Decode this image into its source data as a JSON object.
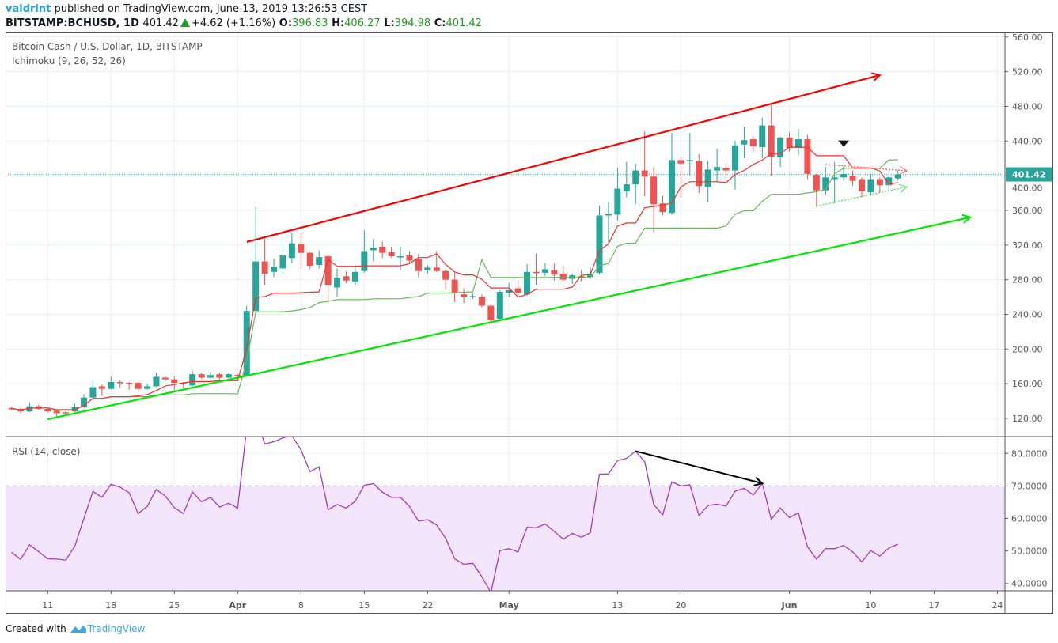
{
  "header": {
    "author": "valdrint",
    "published": "published on TradingView.com, June 13, 2019 13:26:53 CEST",
    "symbol": "BITSTAMP:BCHUSD, 1D",
    "last": "401.42",
    "change": "+4.62 (+1.16%)",
    "o_label": "O:",
    "o": "396.83",
    "h_label": "H:",
    "h": "406.27",
    "l_label": "L:",
    "l": "394.98",
    "c_label": "C:",
    "c": "401.42"
  },
  "legend": {
    "title": "Bitcoin Cash / U.S. Dollar, 1D, BITSTAMP",
    "indicator": "Ichimoku (9, 26, 52, 26)",
    "rsi": "RSI (14, close)"
  },
  "footer": {
    "created_with": "Created with",
    "brand": "TradingView"
  },
  "colors": {
    "up": "#26a69a",
    "down": "#ef5350",
    "tenkan": "#ff2b2b",
    "kijun": "#66b85a",
    "rsi": "#a33cc0",
    "rsi_band": "#f3e5fc",
    "last_price": "#26a69a",
    "resistance": "#ff0000",
    "support": "#00e600",
    "arrow": "#000000"
  },
  "chart_data": [
    {
      "type": "candlestick",
      "title": "Bitcoin Cash / U.S. Dollar, 1D, BITSTAMP",
      "ylim": [
        110,
        565
      ],
      "y_ticks": [
        "560.00",
        "520.00",
        "480.00",
        "440.00",
        "400.00",
        "360.00",
        "320.00",
        "280.00",
        "240.00",
        "200.00",
        "160.00",
        "120.00"
      ],
      "y_tick_values": [
        560,
        520,
        480,
        440,
        400,
        360,
        320,
        280,
        240,
        200,
        160,
        120
      ],
      "x_ticks": [
        {
          "date": "2019-03-11",
          "label": "11"
        },
        {
          "date": "2019-03-18",
          "label": "18"
        },
        {
          "date": "2019-03-25",
          "label": "25"
        },
        {
          "date": "2019-04-01",
          "label": "Apr"
        },
        {
          "date": "2019-04-08",
          "label": "8"
        },
        {
          "date": "2019-04-15",
          "label": "15"
        },
        {
          "date": "2019-04-22",
          "label": "22"
        },
        {
          "date": "2019-05-01",
          "label": "May"
        },
        {
          "date": "2019-05-13",
          "label": "13"
        },
        {
          "date": "2019-05-20",
          "label": "20"
        },
        {
          "date": "2019-06-01",
          "label": "Jun"
        },
        {
          "date": "2019-06-10",
          "label": "10"
        },
        {
          "date": "2019-06-17",
          "label": "17"
        },
        {
          "date": "2019-06-24",
          "label": "24"
        }
      ],
      "x_range": [
        "2019-03-06",
        "2019-06-29"
      ],
      "grid": true,
      "last_price": 401.42,
      "last_price_label": "401.42",
      "columns": [
        "date",
        "open",
        "high",
        "low",
        "close"
      ],
      "candles": [
        [
          "2019-03-07",
          132,
          133,
          130,
          131
        ],
        [
          "2019-03-08",
          131,
          132,
          126,
          128
        ],
        [
          "2019-03-09",
          128,
          138,
          127,
          134
        ],
        [
          "2019-03-10",
          134,
          136,
          130,
          131
        ],
        [
          "2019-03-11",
          131,
          132,
          127,
          128
        ],
        [
          "2019-03-12",
          129,
          130,
          122,
          126
        ],
        [
          "2019-03-13",
          127,
          128,
          124,
          126
        ],
        [
          "2019-03-14",
          128,
          137,
          127,
          133
        ],
        [
          "2019-03-15",
          133,
          148,
          132,
          144
        ],
        [
          "2019-03-16",
          144,
          164,
          143,
          156
        ],
        [
          "2019-03-17",
          157,
          159,
          146,
          154
        ],
        [
          "2019-03-18",
          154,
          168,
          153,
          162
        ],
        [
          "2019-03-19",
          162,
          164,
          155,
          161
        ],
        [
          "2019-03-20",
          161,
          162,
          153,
          160
        ],
        [
          "2019-03-21",
          161,
          162,
          150,
          154
        ],
        [
          "2019-03-22",
          154,
          160,
          153,
          157
        ],
        [
          "2019-03-23",
          157,
          172,
          156,
          168
        ],
        [
          "2019-03-24",
          167,
          169,
          163,
          165
        ],
        [
          "2019-03-25",
          165,
          168,
          152,
          161
        ],
        [
          "2019-03-26",
          161,
          162,
          155,
          160
        ],
        [
          "2019-03-27",
          158,
          175,
          157,
          171
        ],
        [
          "2019-03-28",
          171,
          172,
          166,
          167
        ],
        [
          "2019-03-29",
          167,
          173,
          166,
          170
        ],
        [
          "2019-03-30",
          171,
          172,
          165,
          167
        ],
        [
          "2019-03-31",
          167,
          172,
          166,
          171
        ],
        [
          "2019-04-01",
          170,
          171,
          167,
          169
        ],
        [
          "2019-04-02",
          169,
          250,
          168,
          244
        ],
        [
          "2019-04-03",
          244,
          364,
          242,
          301
        ],
        [
          "2019-04-04",
          301,
          327,
          274,
          287
        ],
        [
          "2019-04-05",
          289,
          304,
          283,
          295
        ],
        [
          "2019-04-06",
          293,
          336,
          286,
          308
        ],
        [
          "2019-04-07",
          305,
          334,
          299,
          322
        ],
        [
          "2019-04-08",
          321,
          334,
          292,
          311
        ],
        [
          "2019-04-09",
          311,
          312,
          292,
          296
        ],
        [
          "2019-04-10",
          297,
          314,
          293,
          306
        ],
        [
          "2019-04-11",
          307,
          308,
          255,
          274
        ],
        [
          "2019-04-12",
          271,
          293,
          260,
          282
        ],
        [
          "2019-04-13",
          284,
          290,
          276,
          279
        ],
        [
          "2019-04-14",
          278,
          297,
          274,
          289
        ],
        [
          "2019-04-15",
          290,
          337,
          288,
          313
        ],
        [
          "2019-04-16",
          314,
          327,
          301,
          317
        ],
        [
          "2019-04-17",
          318,
          324,
          305,
          311
        ],
        [
          "2019-04-18",
          312,
          318,
          305,
          307
        ],
        [
          "2019-04-19",
          306,
          318,
          291,
          307
        ],
        [
          "2019-04-20",
          308,
          313,
          299,
          302
        ],
        [
          "2019-04-21",
          304,
          310,
          283,
          290
        ],
        [
          "2019-04-22",
          291,
          297,
          287,
          294
        ],
        [
          "2019-04-23",
          294,
          313,
          289,
          290
        ],
        [
          "2019-04-24",
          290,
          292,
          268,
          280
        ],
        [
          "2019-04-25",
          280,
          288,
          254,
          264
        ],
        [
          "2019-04-26",
          263,
          270,
          253,
          260
        ],
        [
          "2019-04-27",
          260,
          264,
          258,
          261
        ],
        [
          "2019-04-28",
          260,
          263,
          248,
          250
        ],
        [
          "2019-04-29",
          250,
          252,
          228,
          233
        ],
        [
          "2019-04-30",
          235,
          268,
          233,
          266
        ],
        [
          "2019-05-01",
          265,
          276,
          260,
          268
        ],
        [
          "2019-05-02",
          270,
          279,
          262,
          265
        ],
        [
          "2019-05-03",
          263,
          298,
          262,
          289
        ],
        [
          "2019-05-04",
          289,
          310,
          274,
          288
        ],
        [
          "2019-05-05",
          288,
          299,
          284,
          292
        ],
        [
          "2019-05-06",
          291,
          299,
          279,
          286
        ],
        [
          "2019-05-07",
          287,
          296,
          278,
          280
        ],
        [
          "2019-05-08",
          281,
          287,
          275,
          285
        ],
        [
          "2019-05-09",
          284,
          291,
          278,
          282
        ],
        [
          "2019-05-10",
          283,
          294,
          281,
          287
        ],
        [
          "2019-05-11",
          288,
          365,
          286,
          354
        ],
        [
          "2019-05-12",
          354,
          369,
          323,
          356
        ],
        [
          "2019-05-13",
          355,
          409,
          348,
          385
        ],
        [
          "2019-05-14",
          382,
          416,
          375,
          390
        ],
        [
          "2019-05-15",
          390,
          414,
          367,
          406
        ],
        [
          "2019-05-16",
          406,
          451,
          376,
          399
        ],
        [
          "2019-05-17",
          399,
          410,
          335,
          367
        ],
        [
          "2019-05-18",
          368,
          377,
          354,
          358
        ],
        [
          "2019-05-19",
          357,
          449,
          355,
          418
        ],
        [
          "2019-05-20",
          418,
          421,
          375,
          414
        ],
        [
          "2019-05-21",
          417,
          449,
          400,
          418
        ],
        [
          "2019-05-22",
          417,
          425,
          380,
          388
        ],
        [
          "2019-05-23",
          387,
          417,
          369,
          407
        ],
        [
          "2019-05-24",
          406,
          431,
          393,
          410
        ],
        [
          "2019-05-25",
          409,
          415,
          396,
          406
        ],
        [
          "2019-05-26",
          406,
          440,
          384,
          435
        ],
        [
          "2019-05-27",
          436,
          457,
          420,
          441
        ],
        [
          "2019-05-28",
          442,
          446,
          427,
          434
        ],
        [
          "2019-05-29",
          433,
          467,
          420,
          458
        ],
        [
          "2019-05-30",
          458,
          482,
          400,
          422
        ],
        [
          "2019-05-31",
          421,
          445,
          410,
          444
        ],
        [
          "2019-06-01",
          444,
          450,
          428,
          432
        ],
        [
          "2019-06-02",
          432,
          454,
          424,
          442
        ],
        [
          "2019-06-03",
          442,
          447,
          396,
          402
        ],
        [
          "2019-06-04",
          401,
          402,
          364,
          383
        ],
        [
          "2019-06-05",
          383,
          410,
          378,
          398
        ],
        [
          "2019-06-06",
          396,
          416,
          368,
          398
        ],
        [
          "2019-06-07",
          398,
          411,
          394,
          402
        ],
        [
          "2019-06-08",
          400,
          406,
          388,
          394
        ],
        [
          "2019-06-09",
          396,
          398,
          375,
          382
        ],
        [
          "2019-06-10",
          381,
          402,
          377,
          396
        ],
        [
          "2019-06-11",
          396,
          398,
          380,
          389
        ],
        [
          "2019-06-12",
          389,
          406,
          383,
          398
        ],
        [
          "2019-06-13",
          396.83,
          406.27,
          394.98,
          401.42
        ]
      ],
      "indicator": "Ichimoku (9, 26, 52, 26)",
      "annotations": {
        "resistance_line": {
          "from": [
            "2019-04-02",
            323.5
          ],
          "to": [
            "2019-06-11",
            516
          ]
        },
        "support_line": {
          "from": [
            "2019-03-11",
            119
          ],
          "to": [
            "2019-06-21",
            352
          ]
        },
        "dotted_upper": {
          "from": [
            "2019-06-05",
            413
          ],
          "to": [
            "2019-06-14",
            405.5
          ]
        },
        "dotted_lower": {
          "from": [
            "2019-06-04",
            365
          ],
          "to": [
            "2019-06-14",
            387
          ]
        },
        "marker_down": {
          "at": [
            "2019-06-07",
            437
          ]
        }
      }
    },
    {
      "type": "line",
      "title": "RSI (14, close)",
      "ylim": [
        37,
        84
      ],
      "y_ticks": [
        "80.0000",
        "70.0000",
        "60.0000",
        "50.0000",
        "40.0000"
      ],
      "y_tick_values": [
        80,
        70,
        60,
        50,
        40
      ],
      "band": [
        30,
        70
      ],
      "start_date": "2019-03-07",
      "values": [
        49.6,
        47.4,
        51.9,
        49.8,
        47.6,
        47.5,
        47.2,
        51.5,
        60,
        68.3,
        66.5,
        70.5,
        69.6,
        67.9,
        61.5,
        63.7,
        68.9,
        66.9,
        63.3,
        61.5,
        68.2,
        65.1,
        66.5,
        63.5,
        64.7,
        63.2,
        88,
        91,
        82.9,
        83.6,
        84.8,
        85.5,
        81.1,
        74.4,
        75.9,
        62.7,
        64.3,
        63.2,
        65.3,
        70.2,
        70.7,
        68.1,
        66.5,
        66.5,
        63.7,
        59.2,
        59.6,
        58,
        53.9,
        47.6,
        45.9,
        46.2,
        42.1,
        37.2,
        50.1,
        50.7,
        49.7,
        57.3,
        57.1,
        58.3,
        56,
        53.6,
        55.4,
        54.2,
        55.6,
        73.6,
        73.7,
        77.8,
        78.5,
        80.7,
        77.5,
        64.3,
        61.1,
        71.3,
        70,
        70.4,
        60.9,
        64,
        64.4,
        63.8,
        68.4,
        69.3,
        67.2,
        70.8,
        59.7,
        63.2,
        60.3,
        61.7,
        51.3,
        47.5,
        50.7,
        50.7,
        51.7,
        49.7,
        46.6,
        50.1,
        48.4,
        50.9,
        52.1
      ],
      "divergence_arrow": {
        "from": [
          "2019-05-15",
          80.7
        ],
        "to": [
          "2019-05-29",
          70.8
        ]
      }
    }
  ]
}
